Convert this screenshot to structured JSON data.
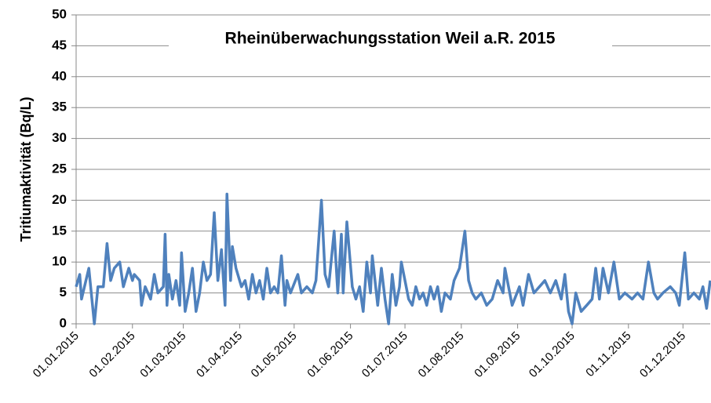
{
  "chart_data": {
    "type": "line",
    "title": "Rheinüberwachungsstation Weil a.R. 2015",
    "y_label": "Tritiumaktivität (Bq/L)",
    "x": [
      "01.01.2015",
      "03.01.2015",
      "04.01.2015",
      "08.01.2015",
      "11.01.2015",
      "13.01.2015",
      "16.01.2015",
      "18.01.2015",
      "20.01.2015",
      "22.01.2015",
      "25.01.2015",
      "27.01.2015",
      "30.01.2015",
      "01.02.2015",
      "02.02.2015",
      "05.02.2015",
      "06.02.2015",
      "08.02.2015",
      "11.02.2015",
      "13.02.2015",
      "15.02.2015",
      "18.02.2015",
      "19.02.2015",
      "20.02.2015",
      "21.02.2015",
      "23.02.2015",
      "25.02.2015",
      "27.02.2015",
      "28.02.2015",
      "02.03.2015",
      "04.03.2015",
      "06.03.2015",
      "08.03.2015",
      "10.03.2015",
      "12.03.2015",
      "14.03.2015",
      "16.03.2015",
      "18.03.2015",
      "20.03.2015",
      "22.03.2015",
      "24.03.2015",
      "25.03.2015",
      "27.03.2015",
      "28.03.2015",
      "30.03.2015",
      "02.04.2015",
      "04.04.2015",
      "06.04.2015",
      "08.04.2015",
      "10.04.2015",
      "12.04.2015",
      "14.04.2015",
      "16.04.2015",
      "18.04.2015",
      "20.04.2015",
      "22.04.2015",
      "24.04.2015",
      "26.04.2015",
      "27.04.2015",
      "29.04.2015",
      "03.05.2015",
      "05.05.2015",
      "08.05.2015",
      "11.05.2015",
      "13.05.2015",
      "16.05.2015",
      "18.05.2015",
      "20.05.2015",
      "23.05.2015",
      "25.05.2015",
      "27.05.2015",
      "28.05.2015",
      "30.05.2015",
      "02.06.2015",
      "04.06.2015",
      "06.06.2015",
      "08.06.2015",
      "10.06.2015",
      "12.06.2015",
      "13.06.2015",
      "16.06.2015",
      "18.06.2015",
      "20.06.2015",
      "22.06.2015",
      "24.06.2015",
      "26.06.2015",
      "28.06.2015",
      "29.06.2015",
      "03.07.2015",
      "05.07.2015",
      "07.07.2015",
      "09.07.2015",
      "11.07.2015",
      "13.07.2015",
      "15.07.2015",
      "17.07.2015",
      "19.07.2015",
      "21.07.2015",
      "23.07.2015",
      "26.07.2015",
      "28.07.2015",
      "31.07.2015",
      "03.08.2015",
      "05.08.2015",
      "07.08.2015",
      "09.08.2015",
      "12.08.2015",
      "15.08.2015",
      "18.08.2015",
      "21.08.2015",
      "24.08.2015",
      "25.08.2015",
      "27.08.2015",
      "29.08.2015",
      "02.09.2015",
      "04.09.2015",
      "07.09.2015",
      "10.09.2015",
      "13.09.2015",
      "16.09.2015",
      "19.09.2015",
      "22.09.2015",
      "25.09.2015",
      "27.09.2015",
      "29.09.2015",
      "01.10.2015",
      "03.10.2015",
      "06.10.2015",
      "09.10.2015",
      "12.10.2015",
      "14.10.2015",
      "16.10.2015",
      "18.10.2015",
      "21.10.2015",
      "24.10.2015",
      "27.10.2015",
      "30.10.2015",
      "03.11.2015",
      "06.11.2015",
      "09.11.2015",
      "12.11.2015",
      "15.11.2015",
      "17.11.2015",
      "20.11.2015",
      "24.11.2015",
      "27.11.2015",
      "29.11.2015",
      "02.12.2015",
      "04.12.2015",
      "07.12.2015",
      "10.12.2015",
      "12.12.2015",
      "14.12.2015",
      "16.12.2015"
    ],
    "series": [
      {
        "color": "#4f81bd",
        "values": [
          6,
          8,
          4,
          9,
          0,
          6,
          6,
          13,
          7,
          9,
          10,
          6,
          9,
          7,
          8,
          7,
          3,
          6,
          4,
          8,
          5,
          6,
          14.5,
          3,
          8,
          4,
          7,
          3,
          11.5,
          2,
          5,
          9,
          2,
          5,
          10,
          7,
          8,
          18,
          7,
          12,
          3,
          21,
          7,
          12.5,
          9,
          6,
          7,
          4,
          8,
          5,
          7,
          4,
          9,
          5,
          6,
          5,
          11,
          3,
          7,
          5,
          8,
          5,
          6,
          5,
          7,
          20,
          8,
          6,
          15,
          5,
          14.5,
          5,
          16.5,
          6,
          4,
          6,
          2,
          10,
          5,
          11,
          3,
          9,
          4,
          0,
          8,
          3,
          6,
          10,
          4,
          3,
          6,
          4,
          5,
          3,
          6,
          4,
          6,
          2,
          5,
          4,
          7,
          9,
          15,
          7,
          5,
          4,
          5,
          3,
          4,
          7,
          5,
          9,
          6,
          3,
          6,
          3,
          8,
          5,
          6,
          7,
          5,
          7,
          4,
          8,
          2,
          0,
          5,
          2,
          3,
          4,
          9,
          4,
          9,
          5,
          10,
          4,
          5,
          4,
          5,
          4,
          10,
          5,
          4,
          5,
          6,
          5,
          3,
          11.5,
          4,
          5,
          4,
          6,
          2.5,
          7
        ]
      }
    ],
    "xlim": [
      "01.01.2015",
      "16.12.2015"
    ],
    "xticks": [
      "01.01.2015",
      "01.02.2015",
      "01.03.2015",
      "01.04.2015",
      "01.05.2015",
      "01.06.2015",
      "01.07.2015",
      "01.08.2015",
      "01.09.2015",
      "01.10.2015",
      "01.11.2015",
      "01.12.2015"
    ],
    "ylim": [
      0,
      50
    ],
    "yticks": [
      0,
      5,
      10,
      15,
      20,
      25,
      30,
      35,
      40,
      45,
      50
    ],
    "grid": true
  }
}
